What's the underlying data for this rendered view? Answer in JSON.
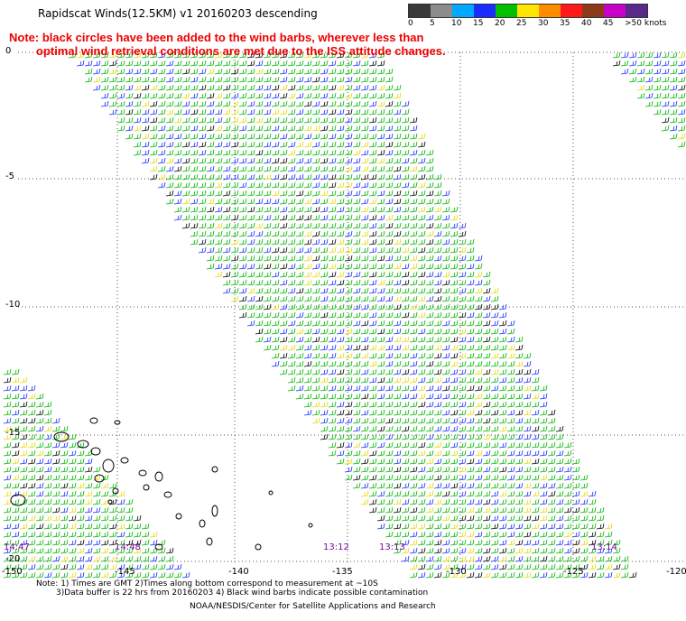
{
  "header": {
    "title": "Rapidscat Winds(12.5KM) v1 20160203 descending",
    "note_line1": "Note: black circles have been added to the wind barbs, wherever less than",
    "note_line2": "optimal wind retrieval conditions are met due to the ISS attitude changes."
  },
  "legend": {
    "unit": "knots",
    "labels": [
      "0",
      "5",
      "10",
      "15",
      "20",
      "25",
      "30",
      "35",
      "40",
      "45",
      ">50 knots"
    ],
    "colors": [
      "#3a3a3a",
      "#8c8c8c",
      "#00a8ff",
      "#1a2cff",
      "#00c000",
      "#ffe600",
      "#ff8c00",
      "#ff1a1a",
      "#8b3a1a",
      "#c800c8",
      "#5a2a8a"
    ]
  },
  "axes": {
    "lat_labels": [
      "0",
      "-5",
      "-10",
      "-15",
      "-20"
    ],
    "lon_labels": [
      "-150",
      "-145",
      "-140",
      "-135",
      "-130",
      "-125",
      "-120"
    ]
  },
  "pass_times": [
    "14:47",
    "14:48",
    "13:12",
    "13:13",
    "13:14"
  ],
  "footer": {
    "line1": "Note: 1) Times are GMT 2)Times along bottom correspond to measurement at ~10S",
    "line2": "3)Data buffer is 22 hrs from 20160203 4) Black wind barbs indicate possible contamination",
    "line3": "NOAA/NESDIS/Center for Satellite Applications and Research"
  }
}
